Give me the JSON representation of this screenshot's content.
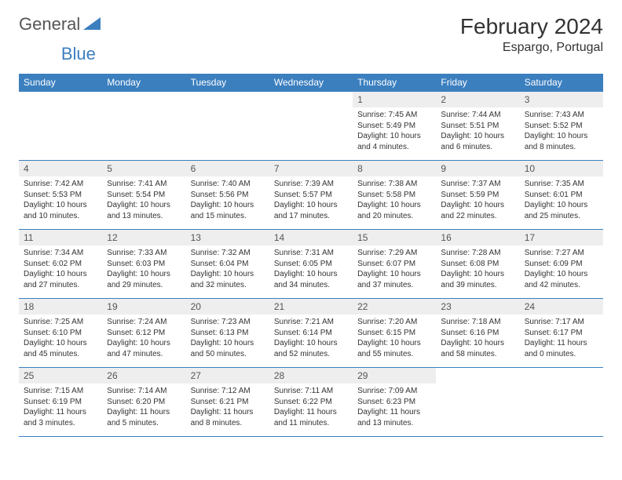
{
  "logo": {
    "text1": "General",
    "text2": "Blue"
  },
  "title": "February 2024",
  "location": "Espargo, Portugal",
  "colors": {
    "header_bg": "#3b7fbf",
    "header_text": "#ffffff",
    "daynum_bg": "#eeeeee",
    "border": "#3b7fbf",
    "body_text": "#333333",
    "page_bg": "#ffffff"
  },
  "weekdays": [
    "Sunday",
    "Monday",
    "Tuesday",
    "Wednesday",
    "Thursday",
    "Friday",
    "Saturday"
  ],
  "weeks": [
    [
      null,
      null,
      null,
      null,
      {
        "n": "1",
        "sr": "7:45 AM",
        "ss": "5:49 PM",
        "d1": "10 hours",
        "d2": "and 4 minutes."
      },
      {
        "n": "2",
        "sr": "7:44 AM",
        "ss": "5:51 PM",
        "d1": "10 hours",
        "d2": "and 6 minutes."
      },
      {
        "n": "3",
        "sr": "7:43 AM",
        "ss": "5:52 PM",
        "d1": "10 hours",
        "d2": "and 8 minutes."
      }
    ],
    [
      {
        "n": "4",
        "sr": "7:42 AM",
        "ss": "5:53 PM",
        "d1": "10 hours",
        "d2": "and 10 minutes."
      },
      {
        "n": "5",
        "sr": "7:41 AM",
        "ss": "5:54 PM",
        "d1": "10 hours",
        "d2": "and 13 minutes."
      },
      {
        "n": "6",
        "sr": "7:40 AM",
        "ss": "5:56 PM",
        "d1": "10 hours",
        "d2": "and 15 minutes."
      },
      {
        "n": "7",
        "sr": "7:39 AM",
        "ss": "5:57 PM",
        "d1": "10 hours",
        "d2": "and 17 minutes."
      },
      {
        "n": "8",
        "sr": "7:38 AM",
        "ss": "5:58 PM",
        "d1": "10 hours",
        "d2": "and 20 minutes."
      },
      {
        "n": "9",
        "sr": "7:37 AM",
        "ss": "5:59 PM",
        "d1": "10 hours",
        "d2": "and 22 minutes."
      },
      {
        "n": "10",
        "sr": "7:35 AM",
        "ss": "6:01 PM",
        "d1": "10 hours",
        "d2": "and 25 minutes."
      }
    ],
    [
      {
        "n": "11",
        "sr": "7:34 AM",
        "ss": "6:02 PM",
        "d1": "10 hours",
        "d2": "and 27 minutes."
      },
      {
        "n": "12",
        "sr": "7:33 AM",
        "ss": "6:03 PM",
        "d1": "10 hours",
        "d2": "and 29 minutes."
      },
      {
        "n": "13",
        "sr": "7:32 AM",
        "ss": "6:04 PM",
        "d1": "10 hours",
        "d2": "and 32 minutes."
      },
      {
        "n": "14",
        "sr": "7:31 AM",
        "ss": "6:05 PM",
        "d1": "10 hours",
        "d2": "and 34 minutes."
      },
      {
        "n": "15",
        "sr": "7:29 AM",
        "ss": "6:07 PM",
        "d1": "10 hours",
        "d2": "and 37 minutes."
      },
      {
        "n": "16",
        "sr": "7:28 AM",
        "ss": "6:08 PM",
        "d1": "10 hours",
        "d2": "and 39 minutes."
      },
      {
        "n": "17",
        "sr": "7:27 AM",
        "ss": "6:09 PM",
        "d1": "10 hours",
        "d2": "and 42 minutes."
      }
    ],
    [
      {
        "n": "18",
        "sr": "7:25 AM",
        "ss": "6:10 PM",
        "d1": "10 hours",
        "d2": "and 45 minutes."
      },
      {
        "n": "19",
        "sr": "7:24 AM",
        "ss": "6:12 PM",
        "d1": "10 hours",
        "d2": "and 47 minutes."
      },
      {
        "n": "20",
        "sr": "7:23 AM",
        "ss": "6:13 PM",
        "d1": "10 hours",
        "d2": "and 50 minutes."
      },
      {
        "n": "21",
        "sr": "7:21 AM",
        "ss": "6:14 PM",
        "d1": "10 hours",
        "d2": "and 52 minutes."
      },
      {
        "n": "22",
        "sr": "7:20 AM",
        "ss": "6:15 PM",
        "d1": "10 hours",
        "d2": "and 55 minutes."
      },
      {
        "n": "23",
        "sr": "7:18 AM",
        "ss": "6:16 PM",
        "d1": "10 hours",
        "d2": "and 58 minutes."
      },
      {
        "n": "24",
        "sr": "7:17 AM",
        "ss": "6:17 PM",
        "d1": "11 hours",
        "d2": "and 0 minutes."
      }
    ],
    [
      {
        "n": "25",
        "sr": "7:15 AM",
        "ss": "6:19 PM",
        "d1": "11 hours",
        "d2": "and 3 minutes."
      },
      {
        "n": "26",
        "sr": "7:14 AM",
        "ss": "6:20 PM",
        "d1": "11 hours",
        "d2": "and 5 minutes."
      },
      {
        "n": "27",
        "sr": "7:12 AM",
        "ss": "6:21 PM",
        "d1": "11 hours",
        "d2": "and 8 minutes."
      },
      {
        "n": "28",
        "sr": "7:11 AM",
        "ss": "6:22 PM",
        "d1": "11 hours",
        "d2": "and 11 minutes."
      },
      {
        "n": "29",
        "sr": "7:09 AM",
        "ss": "6:23 PM",
        "d1": "11 hours",
        "d2": "and 13 minutes."
      },
      null,
      null
    ]
  ],
  "labels": {
    "sunrise": "Sunrise: ",
    "sunset": "Sunset: ",
    "daylight": "Daylight: "
  }
}
